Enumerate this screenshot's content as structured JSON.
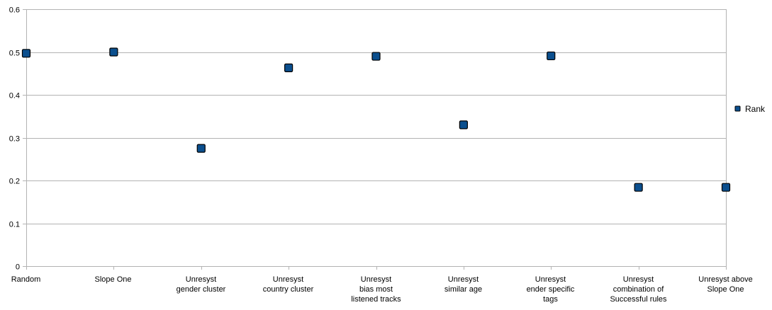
{
  "chart_data": {
    "type": "scatter",
    "categories": [
      [
        "Random"
      ],
      [
        "Slope One"
      ],
      [
        "Unresyst",
        "gender cluster"
      ],
      [
        "Unresyst",
        "country cluster"
      ],
      [
        "Unresyst",
        "bias most",
        "listened tracks"
      ],
      [
        "Unresyst",
        "similar age"
      ],
      [
        "Unresyst",
        "ender specific",
        "tags"
      ],
      [
        "Unresyst",
        "combination of",
        "Successful rules"
      ],
      [
        "Unresyst above",
        "Slope One"
      ]
    ],
    "series": [
      {
        "name": "Rank",
        "values": [
          0.497,
          0.5,
          0.275,
          0.463,
          0.49,
          0.33,
          0.491,
          0.184,
          0.184
        ]
      }
    ],
    "ylim": [
      0,
      0.6
    ],
    "yticks": [
      "0",
      "0.1",
      "0.2",
      "0.3",
      "0.4",
      "0.5",
      "0.6"
    ],
    "title": "",
    "xlabel": "",
    "ylabel": "",
    "grid": true,
    "legend_position": "right",
    "colors": {
      "marker_fill": "#0b4f8e",
      "marker_stroke": "#000000",
      "grid": "#b3b3b3",
      "axis": "#b3b3b3"
    }
  }
}
